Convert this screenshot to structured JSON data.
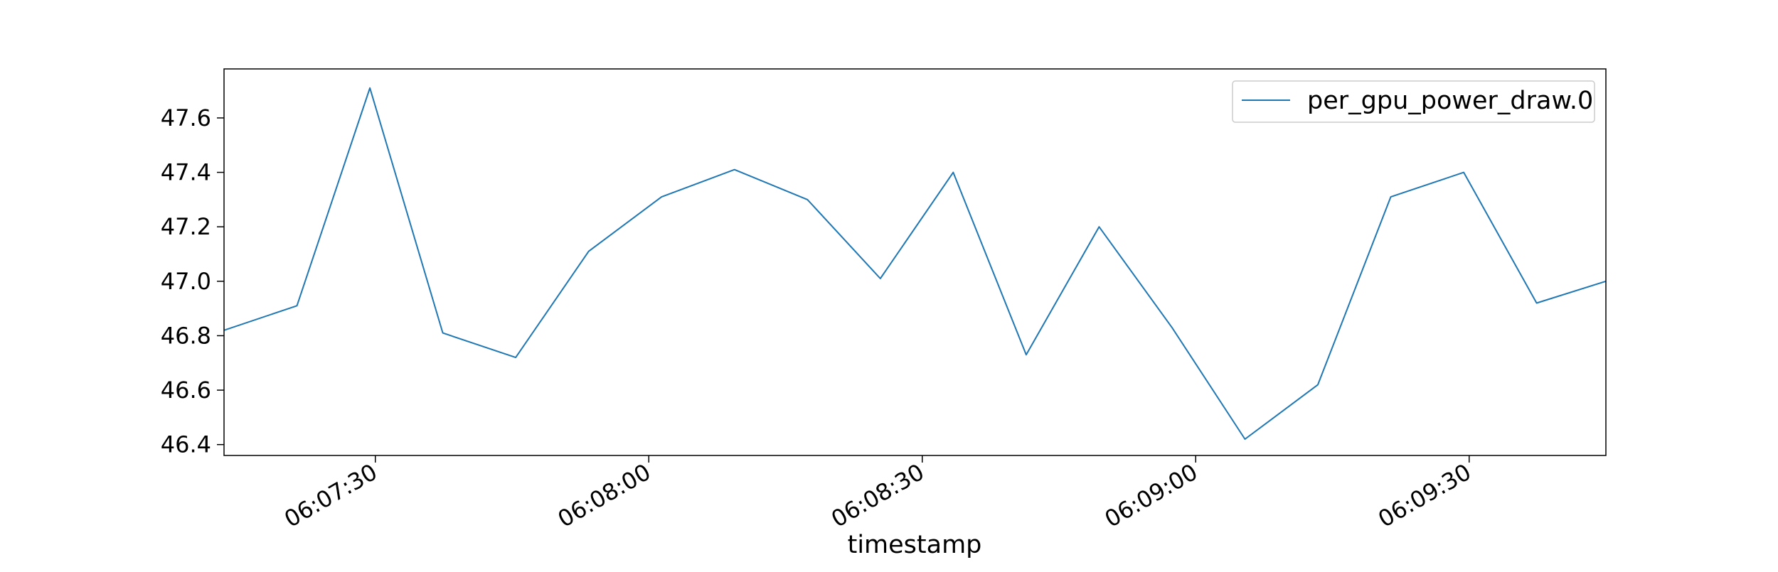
{
  "chart_data": {
    "type": "line",
    "title": "",
    "xlabel": "timestamp",
    "ylabel": "",
    "x_tick_labels": [
      "06:07:30",
      "06:08:00",
      "06:08:30",
      "06:09:00",
      "06:09:30"
    ],
    "x_tick_seconds": [
      30,
      60,
      90,
      120,
      150
    ],
    "y_ticks": [
      "46.4",
      "46.6",
      "46.8",
      "47.0",
      "47.2",
      "47.4",
      "47.6"
    ],
    "y_tick_values": [
      46.4,
      46.6,
      46.8,
      47.0,
      47.2,
      47.4,
      47.6
    ],
    "xlim_seconds": [
      13.4,
      165.0
    ],
    "ylim": [
      46.36,
      47.78
    ],
    "grid": false,
    "legend_position": "top-right",
    "series": [
      {
        "name": "per_gpu_power_draw.0",
        "color": "#1f77b4",
        "x_seconds": [
          13.4,
          21.4,
          29.4,
          37.4,
          45.4,
          53.4,
          61.4,
          69.4,
          77.4,
          85.4,
          93.4,
          101.4,
          109.4,
          117.4,
          125.4,
          133.4,
          141.4,
          149.4,
          157.4,
          165.0
        ],
        "values": [
          46.82,
          46.91,
          47.71,
          46.81,
          46.72,
          47.11,
          47.31,
          47.41,
          47.3,
          47.01,
          47.4,
          46.73,
          47.2,
          46.83,
          46.42,
          46.62,
          47.31,
          47.4,
          46.92,
          47.0
        ]
      }
    ]
  }
}
